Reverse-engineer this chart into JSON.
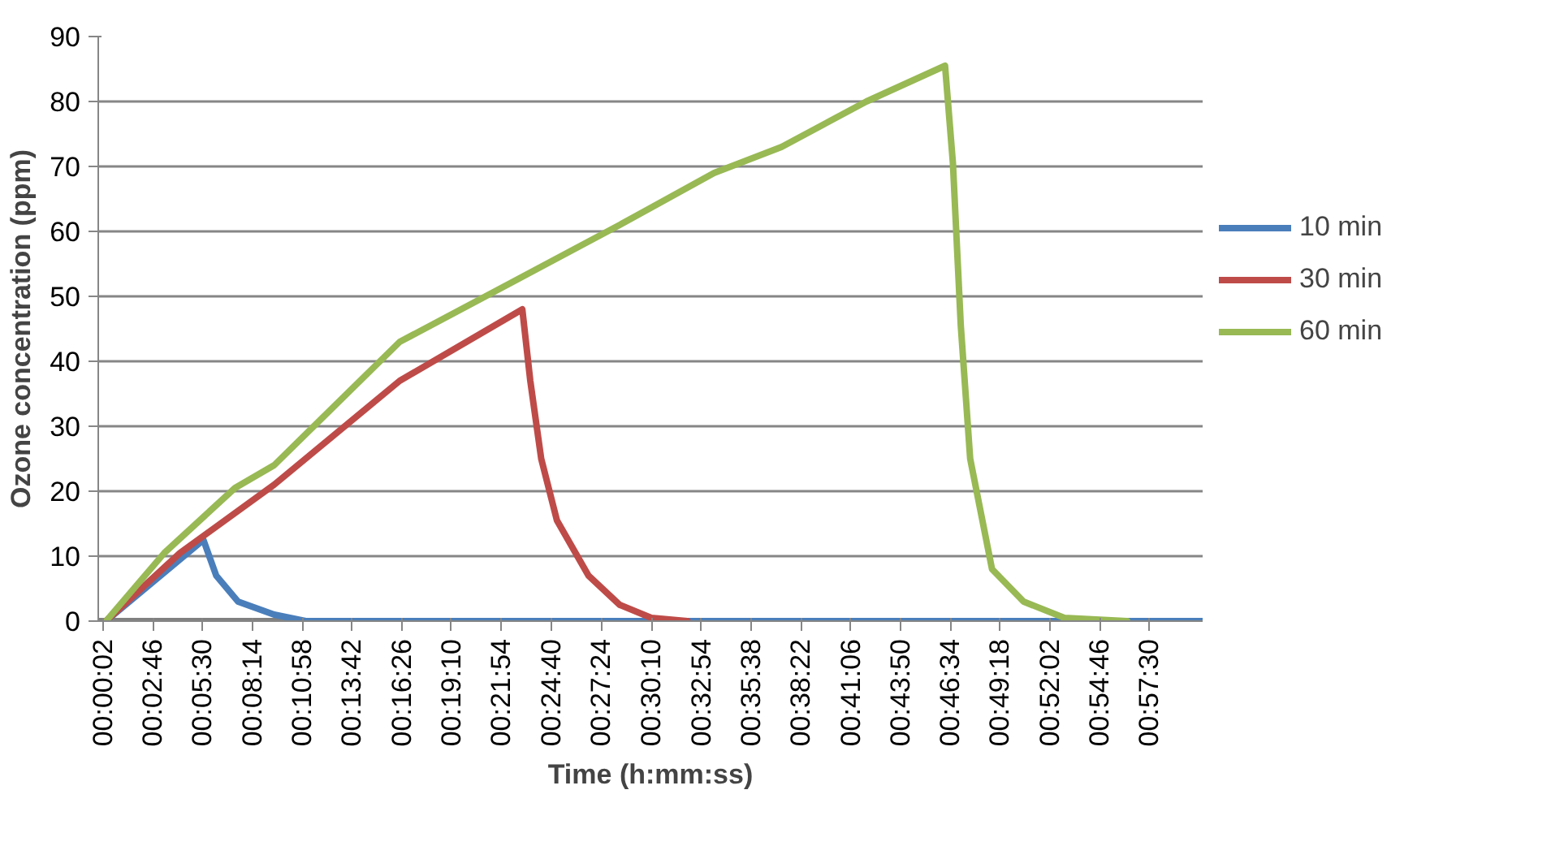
{
  "chart_data": {
    "type": "line",
    "xlabel": "Time (h:mm:ss)",
    "ylabel": "Ozone concentration (ppm)",
    "xlim": [
      -0.0038,
      1.0072
    ],
    "ylim": [
      0,
      90
    ],
    "yticks": [
      0,
      10,
      20,
      30,
      40,
      50,
      60,
      70,
      80,
      90
    ],
    "xticks": [
      {
        "value": 0.0006,
        "label": "00:00:02"
      },
      {
        "value": 0.0461,
        "label": "00:02:46"
      },
      {
        "value": 0.0917,
        "label": "00:05:30"
      },
      {
        "value": 0.1372,
        "label": "00:08:14"
      },
      {
        "value": 0.1828,
        "label": "00:10:58"
      },
      {
        "value": 0.2283,
        "label": "00:13:42"
      },
      {
        "value": 0.2739,
        "label": "00:16:26"
      },
      {
        "value": 0.3194,
        "label": "00:19:10"
      },
      {
        "value": 0.365,
        "label": "00:21:54"
      },
      {
        "value": 0.4111,
        "label": "00:24:40"
      },
      {
        "value": 0.4567,
        "label": "00:27:24"
      },
      {
        "value": 0.5028,
        "label": "00:30:10"
      },
      {
        "value": 0.5483,
        "label": "00:32:54"
      },
      {
        "value": 0.5939,
        "label": "00:35:38"
      },
      {
        "value": 0.6394,
        "label": "00:38:22"
      },
      {
        "value": 0.685,
        "label": "00:41:06"
      },
      {
        "value": 0.7306,
        "label": "00:43:50"
      },
      {
        "value": 0.7761,
        "label": "00:46:34"
      },
      {
        "value": 0.8217,
        "label": "00:49:18"
      },
      {
        "value": 0.8672,
        "label": "00:52:02"
      },
      {
        "value": 0.9128,
        "label": "00:54:46"
      },
      {
        "value": 0.9583,
        "label": "00:57:30"
      }
    ],
    "grid": "y",
    "legend": "right",
    "marker": "none",
    "line_style": "solid",
    "series": [
      {
        "color": "#808080",
        "x": [
          -0.0038,
          1.0072
        ],
        "values": [
          0,
          0
        ]
      },
      {
        "name": "10 min",
        "color": "#4a7ebb",
        "x": [
          0.0033,
          0.0925,
          0.1042,
          0.1242,
          0.1572,
          0.1861,
          1.0072
        ],
        "values": [
          0,
          12.5,
          7,
          3,
          1,
          0,
          0
        ]
      },
      {
        "name": "30 min",
        "color": "#be4b48",
        "x": [
          0.0033,
          0.0711,
          0.1572,
          0.2722,
          0.3844,
          0.3917,
          0.4017,
          0.4161,
          0.445,
          0.4736,
          0.5025,
          0.5356
        ],
        "values": [
          0,
          10.5,
          21,
          37,
          48,
          37,
          25,
          15.5,
          7,
          2.5,
          0.5,
          0
        ]
      },
      {
        "name": "60 min",
        "color": "#98b954",
        "x": [
          0.0033,
          0.0567,
          0.1214,
          0.1572,
          0.2722,
          0.3731,
          0.4736,
          0.56,
          0.6217,
          0.6994,
          0.7714,
          0.7786,
          0.7858,
          0.7944,
          0.8144,
          0.8433,
          0.8806,
          0.9381
        ],
        "values": [
          0,
          10.5,
          20.5,
          24,
          43,
          52,
          61,
          69,
          73,
          80,
          85.5,
          70.5,
          45.5,
          25,
          8,
          3,
          0.5,
          0
        ]
      }
    ]
  }
}
